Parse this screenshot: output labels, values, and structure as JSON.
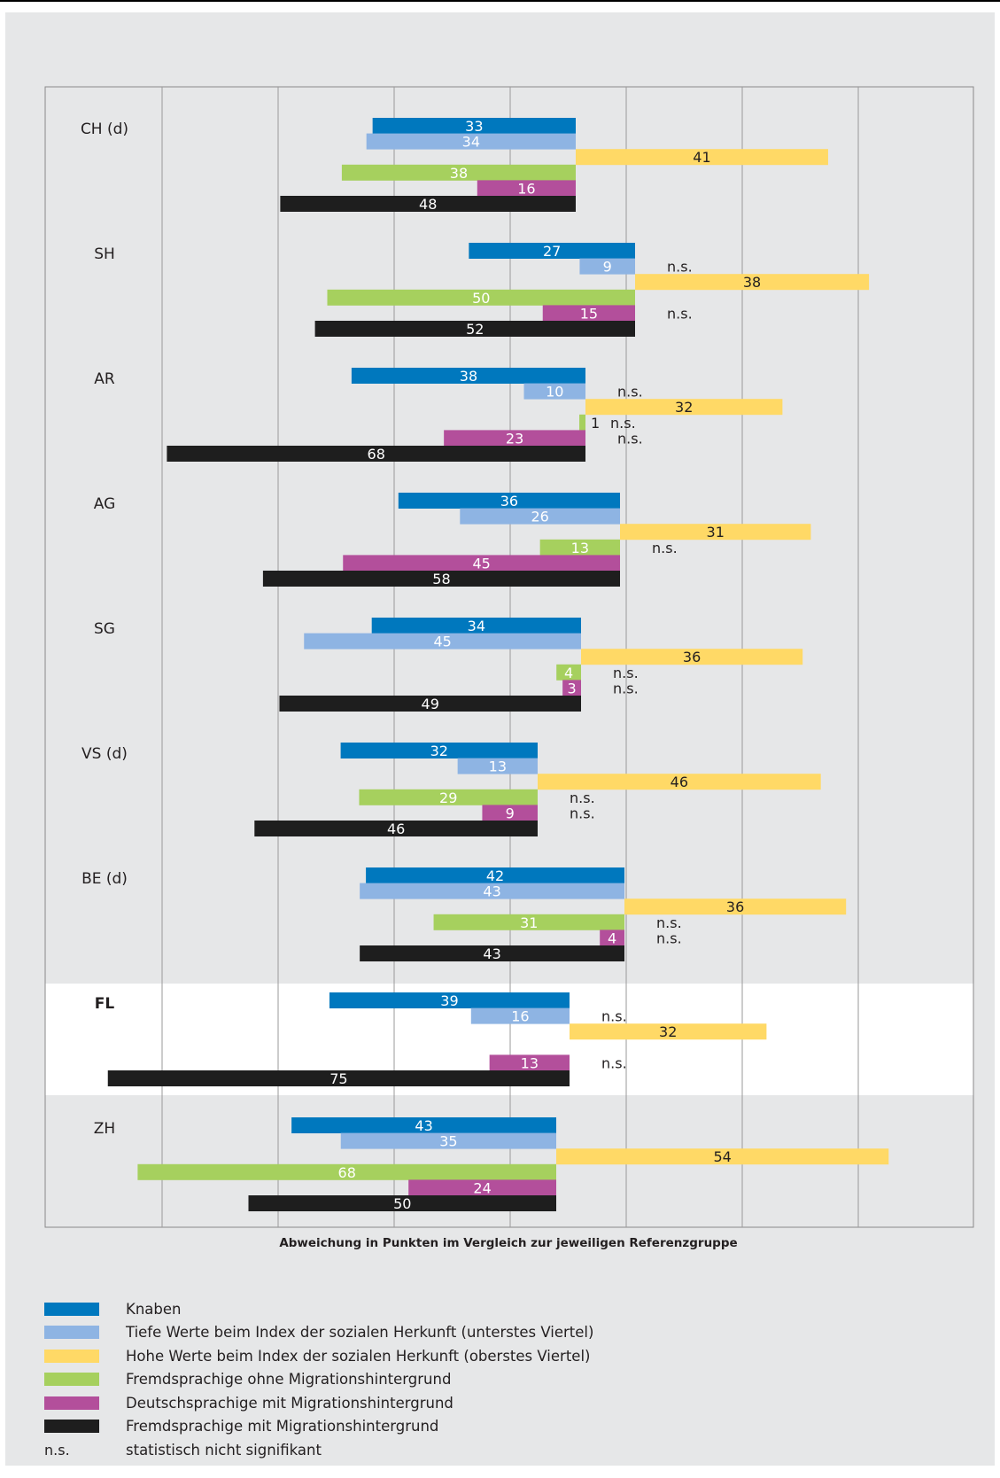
{
  "chart_data": {
    "type": "bar",
    "orientation": "horizontal diverging",
    "xlabel": "Abweichung in Punkten im Vergleich zur jeweiligen Referenzgruppe",
    "grid": true,
    "series": [
      {
        "key": "knaben",
        "name": "Knaben",
        "color": "#0078be",
        "direction": "negative"
      },
      {
        "key": "tief",
        "name": "Tiefe Werte beim Index der sozialen Herkunft (unterstes Viertel)",
        "color": "#8eb4e3",
        "direction": "negative"
      },
      {
        "key": "hoch",
        "name": "Hohe Werte beim Index der sozialen Herkunft (oberstes Viertel)",
        "color": "#ffd966",
        "direction": "positive"
      },
      {
        "key": "fremd_ohne",
        "name": "Fremdsprachige ohne Migrationshintergrund",
        "color": "#a6d05e",
        "direction": "negative"
      },
      {
        "key": "deutsch_mit",
        "name": "Deutschsprachige mit Migrationshintergrund",
        "color": "#b34f9b",
        "direction": "negative"
      },
      {
        "key": "fremd_mit",
        "name": "Fremdsprachige mit Migrationshintergrund",
        "color": "#1e1e1e",
        "direction": "negative"
      }
    ],
    "groups": [
      {
        "label": "CH (d)",
        "bold": false,
        "highlight": false,
        "bars": [
          {
            "value": 33,
            "ns": false
          },
          {
            "value": 34,
            "ns": false
          },
          {
            "value": 41,
            "ns": false
          },
          {
            "value": 38,
            "ns": false
          },
          {
            "value": 16,
            "ns": false
          },
          {
            "value": 48,
            "ns": false
          }
        ]
      },
      {
        "label": "SH",
        "bold": false,
        "highlight": false,
        "bars": [
          {
            "value": 27,
            "ns": false
          },
          {
            "value": 9,
            "ns": true
          },
          {
            "value": 38,
            "ns": false
          },
          {
            "value": 50,
            "ns": false
          },
          {
            "value": 15,
            "ns": true
          },
          {
            "value": 52,
            "ns": false
          }
        ]
      },
      {
        "label": "AR",
        "bold": false,
        "highlight": false,
        "bars": [
          {
            "value": 38,
            "ns": false
          },
          {
            "value": 10,
            "ns": true
          },
          {
            "value": 32,
            "ns": false
          },
          {
            "value": 1,
            "ns": true,
            "label_outside": true
          },
          {
            "value": 23,
            "ns": true
          },
          {
            "value": 68,
            "ns": false
          }
        ]
      },
      {
        "label": "AG",
        "bold": false,
        "highlight": false,
        "bars": [
          {
            "value": 36,
            "ns": false
          },
          {
            "value": 26,
            "ns": false
          },
          {
            "value": 31,
            "ns": false
          },
          {
            "value": 13,
            "ns": true
          },
          {
            "value": 45,
            "ns": false
          },
          {
            "value": 58,
            "ns": false
          }
        ]
      },
      {
        "label": "SG",
        "bold": false,
        "highlight": false,
        "bars": [
          {
            "value": 34,
            "ns": false
          },
          {
            "value": 45,
            "ns": false
          },
          {
            "value": 36,
            "ns": false
          },
          {
            "value": 4,
            "ns": true
          },
          {
            "value": 3,
            "ns": true
          },
          {
            "value": 49,
            "ns": false
          }
        ]
      },
      {
        "label": "VS (d)",
        "bold": false,
        "highlight": false,
        "bars": [
          {
            "value": 32,
            "ns": false
          },
          {
            "value": 13,
            "ns": false
          },
          {
            "value": 46,
            "ns": false
          },
          {
            "value": 29,
            "ns": true
          },
          {
            "value": 9,
            "ns": true
          },
          {
            "value": 46,
            "ns": false
          }
        ]
      },
      {
        "label": "BE (d)",
        "bold": false,
        "highlight": false,
        "bars": [
          {
            "value": 42,
            "ns": false
          },
          {
            "value": 43,
            "ns": false
          },
          {
            "value": 36,
            "ns": false
          },
          {
            "value": 31,
            "ns": true
          },
          {
            "value": 4,
            "ns": true
          },
          {
            "value": 43,
            "ns": false
          }
        ]
      },
      {
        "label": "FL",
        "bold": true,
        "highlight": true,
        "bars": [
          {
            "value": 39,
            "ns": false
          },
          {
            "value": 16,
            "ns": true
          },
          {
            "value": 32,
            "ns": false
          },
          null,
          {
            "value": 13,
            "ns": true
          },
          {
            "value": 75,
            "ns": false
          }
        ]
      },
      {
        "label": "ZH",
        "bold": false,
        "highlight": false,
        "bars": [
          {
            "value": 43,
            "ns": false
          },
          {
            "value": 35,
            "ns": false
          },
          {
            "value": 54,
            "ns": false
          },
          {
            "value": 68,
            "ns": false
          },
          {
            "value": 24,
            "ns": false
          },
          {
            "value": 50,
            "ns": false
          }
        ]
      }
    ]
  },
  "legend": {
    "items": [
      {
        "label": "Knaben",
        "color": "#0078be"
      },
      {
        "label": "Tiefe Werte beim Index der sozialen Herkunft (unterstes Viertel)",
        "color": "#8eb4e3"
      },
      {
        "label": "Hohe Werte beim Index der sozialen Herkunft (oberstes Viertel)",
        "color": "#ffd966"
      },
      {
        "label": "Fremdsprachige ohne Migrationshintergrund",
        "color": "#a6d05e"
      },
      {
        "label": "Deutschsprachige mit Migrationshintergrund",
        "color": "#b34f9b"
      },
      {
        "label": "Fremdsprachige mit Migrationshintergrund",
        "color": "#1e1e1e"
      }
    ],
    "ns_abbrev": "n.s.",
    "ns_label": "statistisch nicht signifikant"
  }
}
